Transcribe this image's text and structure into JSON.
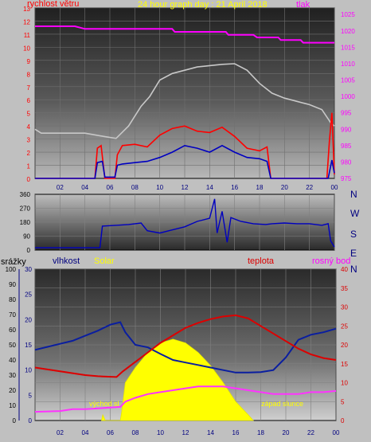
{
  "header": {
    "wind_label": "rychlost větru",
    "title": "24 hour graph day : 21 April 2018",
    "pressure_label": "tlak"
  },
  "lower_header": {
    "rain_label": "srážky",
    "humidity_label": "vlhkost",
    "solar_label": "Solar",
    "temp_label": "teplota",
    "dew_label": "rosný bod"
  },
  "compass_labels": [
    "N",
    "W",
    "S",
    "E",
    "N"
  ],
  "annotations": {
    "sunrise": "východ sl",
    "sunset": "západ slunce"
  },
  "colors": {
    "wind_speed": "#ff0000",
    "wind_avg": "#0000c0",
    "pressure": "#ff00ff",
    "pressure_label": "#ff00ff",
    "gray_line": "#c8c8c8",
    "solar": "#ffff00",
    "temperature": "#dd0000",
    "humidity": "#0a1ea0",
    "dew": "#ff33ff"
  },
  "chart_data": [
    {
      "type": "line",
      "x_ticks": [
        "02",
        "04",
        "06",
        "08",
        "10",
        "12",
        "14",
        "16",
        "18",
        "20",
        "22",
        "00"
      ],
      "y_left_ticks": [
        "0",
        "1",
        "2",
        "3",
        "4",
        "5",
        "6",
        "7",
        "8",
        "9",
        "10",
        "11",
        "12",
        "13"
      ],
      "y_right_ticks": [
        "975",
        "980",
        "985",
        "990",
        "995",
        "1000",
        "1005",
        "1010",
        "1015",
        "1020",
        "1025"
      ],
      "xlim": [
        0,
        24
      ],
      "ylim_left": [
        0,
        13
      ],
      "ylim_right": [
        975,
        1027
      ],
      "series": [
        {
          "axis": "right",
          "color_key": "pressure",
          "points": [
            [
              0,
              1021.4
            ],
            [
              3.2,
              1021.4
            ],
            [
              4,
              1020.6
            ],
            [
              11,
              1020.6
            ],
            [
              11.2,
              1019.7
            ],
            [
              15.3,
              1019.7
            ],
            [
              15.5,
              1018.8
            ],
            [
              17.5,
              1018.8
            ],
            [
              17.8,
              1018
            ],
            [
              19.5,
              1018
            ],
            [
              19.7,
              1017.2
            ],
            [
              21.3,
              1017.2
            ],
            [
              21.5,
              1016.4
            ],
            [
              24,
              1016.4
            ]
          ]
        },
        {
          "axis": "right",
          "color_key": "gray_line",
          "points": [
            [
              0,
              990
            ],
            [
              0.5,
              988.8
            ],
            [
              4,
              988.8
            ],
            [
              5.5,
              987.8
            ],
            [
              6.5,
              987.2
            ],
            [
              7.5,
              991
            ],
            [
              8.5,
              997
            ],
            [
              9.2,
              1000
            ],
            [
              10,
              1005
            ],
            [
              11,
              1007
            ],
            [
              12,
              1008
            ],
            [
              13,
              1009
            ],
            [
              14,
              1009.4
            ],
            [
              15,
              1009.8
            ],
            [
              16,
              1010
            ],
            [
              17,
              1008
            ],
            [
              18,
              1004
            ],
            [
              19,
              1001
            ],
            [
              20,
              999.5
            ],
            [
              21,
              998.5
            ],
            [
              22,
              997.5
            ],
            [
              23,
              996
            ],
            [
              23.7,
              992
            ],
            [
              24,
              991
            ]
          ]
        },
        {
          "axis": "left",
          "color_key": "wind_speed",
          "points": [
            [
              0,
              0
            ],
            [
              4.8,
              0
            ],
            [
              5,
              2.3
            ],
            [
              5.3,
              2.5
            ],
            [
              5.6,
              0
            ],
            [
              6.4,
              0
            ],
            [
              6.6,
              1.8
            ],
            [
              7,
              2.5
            ],
            [
              8,
              2.6
            ],
            [
              9,
              2.4
            ],
            [
              10,
              3.3
            ],
            [
              11,
              3.8
            ],
            [
              12,
              4.0
            ],
            [
              13,
              3.6
            ],
            [
              14,
              3.5
            ],
            [
              15,
              3.9
            ],
            [
              16,
              3.2
            ],
            [
              17,
              2.3
            ],
            [
              18,
              2.1
            ],
            [
              18.6,
              2.4
            ],
            [
              18.9,
              0
            ],
            [
              23.4,
              0
            ],
            [
              23.6,
              2.8
            ],
            [
              23.8,
              5.0
            ],
            [
              24,
              0.3
            ]
          ]
        },
        {
          "axis": "left",
          "color_key": "wind_avg",
          "points": [
            [
              0,
              0
            ],
            [
              4.8,
              0
            ],
            [
              5,
              1.2
            ],
            [
              5.4,
              1.3
            ],
            [
              5.6,
              0.1
            ],
            [
              6.4,
              0.1
            ],
            [
              6.6,
              1.0
            ],
            [
              7,
              1.1
            ],
            [
              8,
              1.2
            ],
            [
              9,
              1.3
            ],
            [
              10,
              1.6
            ],
            [
              11,
              2.0
            ],
            [
              12,
              2.5
            ],
            [
              13,
              2.3
            ],
            [
              14,
              2.0
            ],
            [
              15,
              2.5
            ],
            [
              16,
              2.0
            ],
            [
              17,
              1.6
            ],
            [
              18,
              1.5
            ],
            [
              18.6,
              1.3
            ],
            [
              18.9,
              0
            ],
            [
              23.5,
              0
            ],
            [
              23.8,
              1.4
            ],
            [
              24,
              0.4
            ]
          ]
        }
      ]
    },
    {
      "type": "line",
      "x_ticks": [
        "02",
        "04",
        "06",
        "08",
        "10",
        "12",
        "14",
        "16",
        "18",
        "20",
        "22",
        "00"
      ],
      "y_ticks": [
        "0",
        "90",
        "180",
        "270",
        "360"
      ],
      "xlim": [
        0,
        24
      ],
      "ylim": [
        0,
        360
      ],
      "series": [
        {
          "name": "",
          "color_key": "wind_avg",
          "points": [
            [
              0,
              15
            ],
            [
              5.2,
              15
            ],
            [
              5.4,
              155
            ],
            [
              6.5,
              160
            ],
            [
              7.5,
              165
            ],
            [
              8.5,
              175
            ],
            [
              9,
              125
            ],
            [
              10,
              110
            ],
            [
              11,
              130
            ],
            [
              12,
              150
            ],
            [
              13,
              185
            ],
            [
              14,
              205
            ],
            [
              14.4,
              330
            ],
            [
              14.6,
              110
            ],
            [
              15,
              250
            ],
            [
              15.4,
              50
            ],
            [
              15.7,
              210
            ],
            [
              16.5,
              185
            ],
            [
              17.5,
              170
            ],
            [
              18.5,
              165
            ],
            [
              19,
              170
            ],
            [
              20,
              175
            ],
            [
              21,
              170
            ],
            [
              22,
              170
            ],
            [
              23,
              160
            ],
            [
              23.5,
              170
            ],
            [
              23.7,
              60
            ],
            [
              24,
              20
            ]
          ]
        }
      ]
    },
    {
      "type": "area",
      "x_ticks": [
        "02",
        "04",
        "06",
        "08",
        "10",
        "12",
        "14",
        "16",
        "18",
        "20",
        "22",
        "00"
      ],
      "y_rain_ticks": [
        "0",
        "10",
        "20",
        "30",
        "40",
        "50",
        "60",
        "70",
        "80",
        "90",
        "100"
      ],
      "y_humidity_ticks": [
        "0",
        "5",
        "10",
        "15",
        "20",
        "25",
        "30"
      ],
      "y_right_ticks": [
        "0",
        "5",
        "10",
        "15",
        "20",
        "25",
        "30",
        "35",
        "40"
      ],
      "xlim": [
        0,
        24
      ],
      "ylim_humidity": [
        0,
        30
      ],
      "ylim_right": [
        0,
        40
      ],
      "solar_peak_right_units": 21.5,
      "series": [
        {
          "axis": "right",
          "color_key": "solar",
          "fill": true,
          "points": [
            [
              5.3,
              0
            ],
            [
              5.4,
              1.5
            ],
            [
              5.6,
              0
            ],
            [
              6.8,
              0
            ],
            [
              6.9,
              2
            ],
            [
              7.2,
              10
            ],
            [
              8,
              14
            ],
            [
              9,
              18
            ],
            [
              10,
              20.5
            ],
            [
              11,
              21.5
            ],
            [
              12,
              20.5
            ],
            [
              13,
              18
            ],
            [
              14,
              14.5
            ],
            [
              15,
              10
            ],
            [
              16,
              5
            ],
            [
              17,
              1.5
            ],
            [
              17.4,
              0
            ]
          ]
        },
        {
          "axis": "humidity",
          "color_key": "humidity",
          "points": [
            [
              0,
              14
            ],
            [
              1,
              14.6
            ],
            [
              2,
              15.2
            ],
            [
              3,
              15.8
            ],
            [
              4,
              16.8
            ],
            [
              5,
              17.8
            ],
            [
              6,
              19
            ],
            [
              6.8,
              19.5
            ],
            [
              7.2,
              17.5
            ],
            [
              8,
              15
            ],
            [
              9,
              14.5
            ],
            [
              10,
              13.2
            ],
            [
              11,
              12
            ],
            [
              12,
              11.5
            ],
            [
              13,
              11
            ],
            [
              14,
              10.5
            ],
            [
              15,
              10
            ],
            [
              16,
              9.5
            ],
            [
              17,
              9.5
            ],
            [
              18,
              9.6
            ],
            [
              19,
              10
            ],
            [
              20,
              12.5
            ],
            [
              21,
              16
            ],
            [
              22,
              17
            ],
            [
              23,
              17.5
            ],
            [
              24,
              18.2
            ]
          ]
        },
        {
          "axis": "right",
          "color_key": "temperature",
          "points": [
            [
              0,
              14
            ],
            [
              2,
              13
            ],
            [
              4,
              12
            ],
            [
              5,
              11.7
            ],
            [
              6.5,
              11.5
            ],
            [
              7,
              13
            ],
            [
              8,
              15.5
            ],
            [
              9,
              18
            ],
            [
              10,
              20.5
            ],
            [
              11,
              22.5
            ],
            [
              12,
              24.5
            ],
            [
              13,
              25.8
            ],
            [
              14,
              26.8
            ],
            [
              15,
              27.5
            ],
            [
              16,
              27.8
            ],
            [
              17,
              27
            ],
            [
              18,
              25
            ],
            [
              19,
              23
            ],
            [
              20,
              21
            ],
            [
              21,
              19
            ],
            [
              22,
              17.5
            ],
            [
              23,
              16.5
            ],
            [
              24,
              16
            ]
          ]
        },
        {
          "axis": "right",
          "color_key": "dew",
          "points": [
            [
              0,
              2.3
            ],
            [
              2,
              2.5
            ],
            [
              3,
              3
            ],
            [
              4,
              3
            ],
            [
              5.5,
              3.3
            ],
            [
              6.8,
              3.6
            ],
            [
              7.2,
              5
            ],
            [
              8,
              6
            ],
            [
              9,
              7
            ],
            [
              10,
              7.5
            ],
            [
              11,
              8
            ],
            [
              12,
              8.5
            ],
            [
              13,
              9
            ],
            [
              14,
              9
            ],
            [
              15,
              9
            ],
            [
              16,
              8.5
            ],
            [
              17,
              8
            ],
            [
              18,
              7.5
            ],
            [
              19,
              7
            ],
            [
              20,
              7
            ],
            [
              21,
              7
            ],
            [
              22,
              7.5
            ],
            [
              23,
              7.5
            ],
            [
              24,
              7.8
            ]
          ]
        }
      ]
    }
  ]
}
